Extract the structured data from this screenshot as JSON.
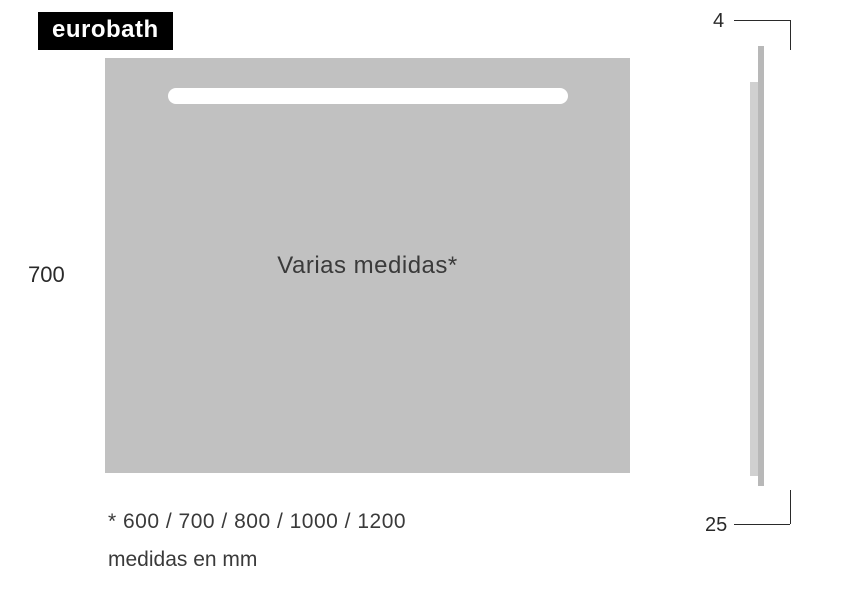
{
  "logo": {
    "text": "eurobath"
  },
  "diagram": {
    "front": {
      "fill_color": "#c1c1c1",
      "slot_color": "#ffffff",
      "center_label": "Varias medidas*",
      "center_fontsize": 24,
      "height_label": "700",
      "label_fontsize": 22,
      "label_color": "#2a2a2a"
    },
    "side": {
      "mount_color": "#b8b8b8",
      "edge_color": "#d0d0d0",
      "top_dim": "4",
      "bottom_dim": "25"
    },
    "footnote": {
      "sizes": "* 600 / 700 / 800 / 1000 / 1200",
      "unit": "medidas en mm",
      "fontsize": 21,
      "color": "#3a3a3a"
    },
    "background_color": "#ffffff"
  }
}
